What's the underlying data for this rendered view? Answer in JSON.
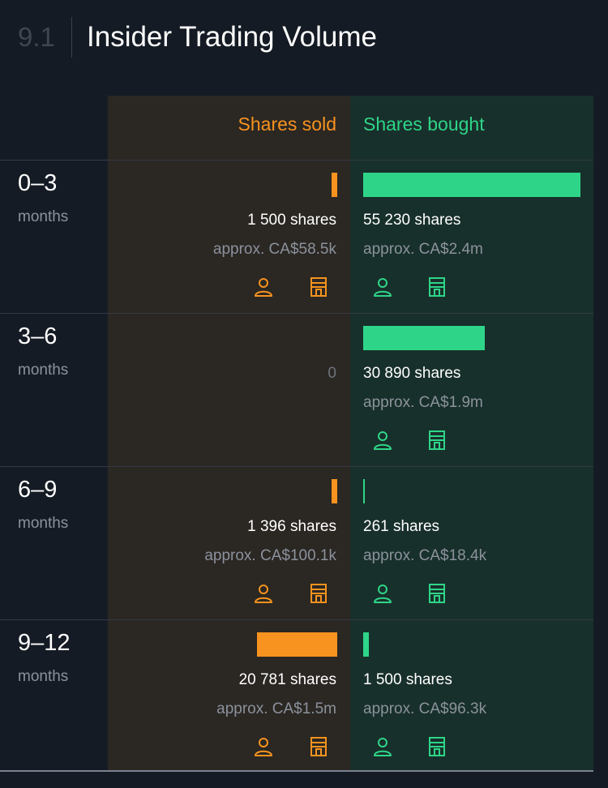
{
  "header": {
    "section_number": "9.1",
    "title": "Insider Trading Volume"
  },
  "columns": {
    "sold": "Shares sold",
    "bought": "Shares bought"
  },
  "colors": {
    "sold": "#f7931e",
    "bought": "#2ed588",
    "background": "#151b24"
  },
  "icons": {
    "individual": "person-icon",
    "company": "building-icon"
  },
  "rows": [
    {
      "period": "0–3",
      "unit": "months",
      "sold": {
        "shares": "1 500 shares",
        "value": "approx. CA$58.5k",
        "bar_fraction": 0.027
      },
      "bought": {
        "shares": "55 230 shares",
        "value": "approx. CA$2.4m",
        "bar_fraction": 1.0
      }
    },
    {
      "period": "3–6",
      "unit": "months",
      "sold": {
        "zero": "0",
        "bar_fraction": 0
      },
      "bought": {
        "shares": "30 890 shares",
        "value": "approx. CA$1.9m",
        "bar_fraction": 0.56
      }
    },
    {
      "period": "6–9",
      "unit": "months",
      "sold": {
        "shares": "1 396 shares",
        "value": "approx. CA$100.1k",
        "bar_fraction": 0.027
      },
      "bought": {
        "shares": "261 shares",
        "value": "approx. CA$18.4k",
        "bar_fraction": 0.005
      }
    },
    {
      "period": "9–12",
      "unit": "months",
      "sold": {
        "shares": "20 781 shares",
        "value": "approx. CA$1.5m",
        "bar_fraction": 0.37
      },
      "bought": {
        "shares": "1 500 shares",
        "value": "approx. CA$96.3k",
        "bar_fraction": 0.027
      }
    }
  ]
}
